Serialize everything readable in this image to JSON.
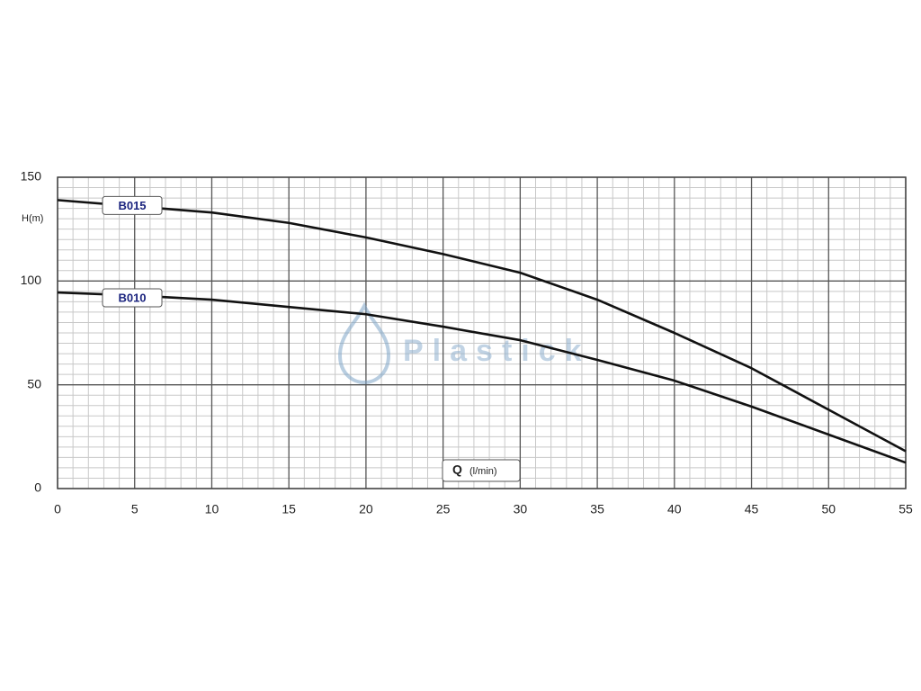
{
  "chart_data": {
    "type": "line",
    "y_label": "H(m)",
    "x_label_main": "Q",
    "x_label_unit": "(l/min)",
    "watermark": "Plastick",
    "x": [
      0,
      5,
      10,
      15,
      20,
      25,
      30,
      35,
      40,
      45,
      50,
      55
    ],
    "series": [
      {
        "name": "B015",
        "color": "#111111",
        "values": [
          139,
          136,
          133,
          128,
          121,
          113,
          104,
          91,
          75,
          58,
          38,
          18
        ]
      },
      {
        "name": "B010",
        "color": "#111111",
        "values": [
          94.5,
          93,
          91,
          87.5,
          84,
          78,
          71.5,
          62,
          52,
          39.5,
          26,
          12.5
        ]
      }
    ],
    "xlim": [
      0,
      55
    ],
    "xticks": [
      0,
      5,
      10,
      15,
      20,
      25,
      30,
      35,
      40,
      45,
      50,
      55
    ],
    "ylim": [
      0,
      150
    ],
    "yticks": [
      0,
      50,
      100,
      150
    ],
    "grid": true
  }
}
